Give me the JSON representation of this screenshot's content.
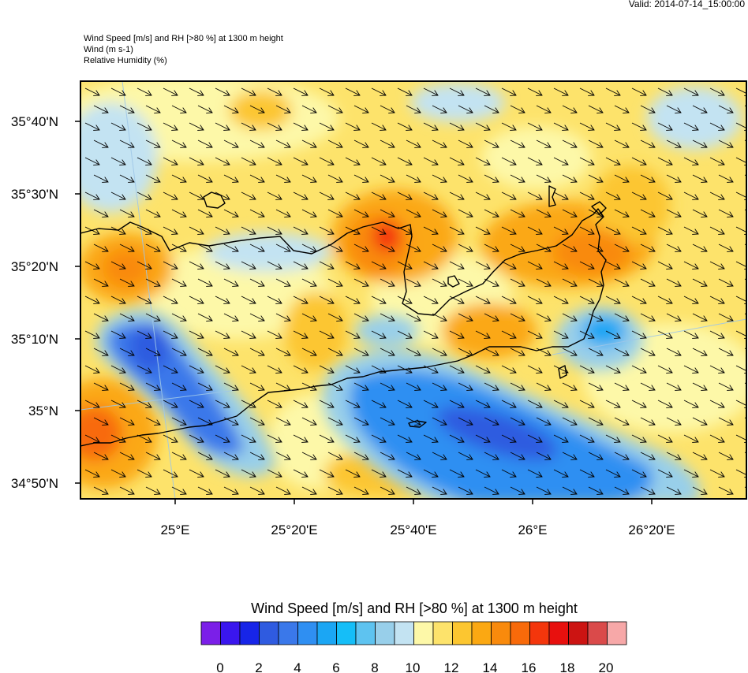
{
  "valid_time": "Valid: 2014-07-14_15:00:00",
  "titles": [
    "Wind Speed [m/s] and RH [>80 %] at 1300 m height",
    "Wind   (m s-1)",
    "Relative Humidity   (%)"
  ],
  "map": {
    "lat_labels": [
      "35°40'N",
      "35°30'N",
      "35°20'N",
      "35°10'N",
      "35°N",
      "34°50'N"
    ],
    "lon_labels": [
      "25°E",
      "25°20'E",
      "25°40'E",
      "26°E",
      "26°20'E"
    ],
    "wind_direction": "northwesterly (arrows pointing to the southeast)"
  },
  "legend": {
    "title": "Wind Speed [m/s] and RH [>80 %] at 1300 m height",
    "colors": [
      "#7b1fe8",
      "#3a16ee",
      "#1725e8",
      "#2f5be0",
      "#3a78ea",
      "#2f8ff2",
      "#1ba6f4",
      "#15bef8",
      "#5ec3f0",
      "#98cfea",
      "#c3e3f2",
      "#fdf8a8",
      "#fde36b",
      "#fcc630",
      "#fba812",
      "#f98a0c",
      "#f86a0a",
      "#f4360c",
      "#e8100e",
      "#cc1412",
      "#da4a4a",
      "#f7a8a8"
    ],
    "labels": [
      "0",
      "2",
      "4",
      "6",
      "8",
      "10",
      "12",
      "14",
      "16",
      "18",
      "20"
    ]
  }
}
